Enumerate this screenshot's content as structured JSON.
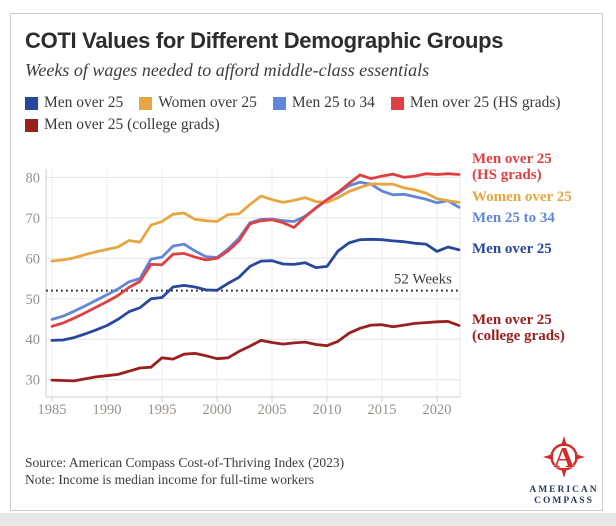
{
  "chart_data": {
    "type": "line",
    "title": "COTI Values for Different Demographic Groups",
    "subtitle": "Weeks of wages needed to afford middle-class essentials",
    "x": [
      1985,
      1986,
      1987,
      1988,
      1989,
      1990,
      1991,
      1992,
      1993,
      1994,
      1995,
      1996,
      1997,
      1998,
      1999,
      2000,
      2001,
      2002,
      2003,
      2004,
      2005,
      2006,
      2007,
      2008,
      2009,
      2010,
      2011,
      2012,
      2013,
      2014,
      2015,
      2016,
      2017,
      2018,
      2019,
      2020,
      2021,
      2022
    ],
    "x_ticks": [
      1985,
      1990,
      1995,
      2000,
      2005,
      2010,
      2015,
      2020
    ],
    "y_ticks": [
      30,
      40,
      50,
      60,
      70,
      80
    ],
    "ylim": [
      26,
      84
    ],
    "grid": true,
    "legend_position": "top",
    "reference_line": {
      "value": 52,
      "label": "52 Weeks"
    },
    "series": [
      {
        "name": "Men over 25",
        "color": "#27489c",
        "end_label": [
          "Men over 25"
        ],
        "values": [
          39.7,
          39.8,
          40.4,
          41.3,
          42.3,
          43.4,
          44.9,
          46.8,
          47.8,
          50.0,
          50.3,
          52.9,
          53.3,
          52.9,
          52.2,
          52.1,
          53.8,
          55.3,
          58.0,
          59.3,
          59.4,
          58.6,
          58.5,
          58.9,
          57.7,
          58.0,
          61.8,
          63.8,
          64.6,
          64.7,
          64.6,
          64.3,
          64.1,
          63.7,
          63.5,
          61.7,
          62.8,
          62.1
        ]
      },
      {
        "name": "Women over 25",
        "color": "#e8a640",
        "end_label": [
          "Women over 25"
        ],
        "values": [
          59.3,
          59.6,
          60.1,
          60.9,
          61.6,
          62.2,
          62.8,
          64.4,
          64.0,
          68.2,
          69.1,
          70.9,
          71.2,
          69.6,
          69.3,
          69.1,
          70.8,
          71.0,
          73.3,
          75.4,
          74.5,
          73.8,
          74.3,
          75.0,
          74.0,
          73.8,
          75.0,
          76.5,
          77.5,
          78.4,
          78.3,
          78.3,
          77.4,
          76.9,
          76.1,
          74.7,
          74.2,
          73.8
        ]
      },
      {
        "name": "Men 25 to 34",
        "color": "#6287da",
        "end_label": [
          "Men 25 to 34"
        ],
        "values": [
          44.9,
          45.7,
          46.9,
          48.2,
          49.6,
          51.0,
          52.4,
          54.2,
          55.0,
          59.8,
          60.3,
          63.0,
          63.5,
          61.8,
          60.4,
          60.2,
          62.3,
          65.0,
          68.8,
          69.6,
          69.7,
          69.3,
          69.1,
          70.4,
          72.4,
          74.4,
          76.1,
          77.9,
          78.8,
          78.3,
          76.6,
          75.7,
          75.8,
          75.2,
          74.6,
          73.7,
          74.2,
          72.6
        ]
      },
      {
        "name": "Men over 25 (HS grads)",
        "color": "#e04043",
        "end_label": [
          "Men over 25",
          "(HS grads)"
        ],
        "values": [
          43.2,
          44.0,
          45.2,
          46.5,
          47.9,
          49.3,
          50.8,
          52.8,
          54.3,
          58.5,
          58.4,
          61.0,
          61.2,
          60.3,
          59.6,
          60.0,
          61.8,
          64.3,
          68.5,
          69.3,
          69.5,
          68.8,
          67.6,
          70.2,
          72.5,
          74.5,
          76.3,
          78.5,
          80.6,
          79.7,
          80.3,
          80.8,
          80.0,
          80.3,
          80.9,
          80.7,
          80.9,
          80.7
        ]
      },
      {
        "name": "Men over 25 (college grads)",
        "color": "#99201f",
        "end_label": [
          "Men over 25",
          "(college grads)"
        ],
        "values": [
          29.9,
          29.8,
          29.7,
          30.2,
          30.7,
          31.0,
          31.3,
          32.1,
          32.9,
          33.1,
          35.4,
          35.1,
          36.3,
          36.5,
          35.9,
          35.2,
          35.4,
          37.0,
          38.3,
          39.7,
          39.2,
          38.8,
          39.1,
          39.3,
          38.7,
          38.4,
          39.5,
          41.5,
          42.7,
          43.5,
          43.6,
          43.1,
          43.5,
          43.9,
          44.1,
          44.3,
          44.4,
          43.4
        ]
      }
    ]
  },
  "footer": {
    "source": "Source: American Compass Cost-of-Thriving Index (2023)",
    "note": "Note: Income is median income for full-time workers"
  },
  "logo": {
    "line1": "AMERICAN",
    "line2": "COMPASS",
    "monogram": "A",
    "accent_color": "#d02c2c",
    "text_color": "#2c3a5e"
  }
}
